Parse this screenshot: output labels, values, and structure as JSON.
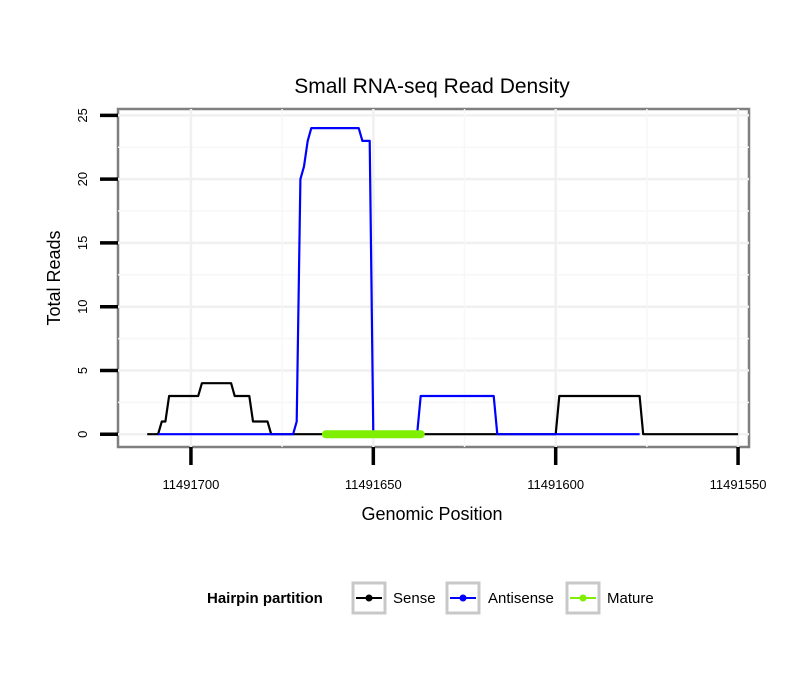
{
  "chart_data": {
    "type": "line",
    "title": "Small RNA-seq Read Density",
    "xlabel": "Genomic Position",
    "ylabel": "Total Reads",
    "x_reversed": true,
    "xlim": [
      11491720,
      11491547
    ],
    "ylim": [
      -1,
      25.5
    ],
    "x_ticks": [
      11491700,
      11491650,
      11491600,
      11491550
    ],
    "x_tick_labels": [
      "11491700",
      "11491650",
      "11491600",
      "11491550"
    ],
    "y_ticks": [
      0,
      5,
      10,
      15,
      20,
      25
    ],
    "y_tick_labels": [
      "0",
      "5",
      "10",
      "15",
      "20",
      "25"
    ],
    "grid": true,
    "legend": {
      "title": "Hairpin partition",
      "position": "bottom",
      "entries": [
        {
          "name": "Sense",
          "color": "#000000"
        },
        {
          "name": "Antisense",
          "color": "#0000ff"
        },
        {
          "name": "Mature",
          "color": "#80ee00"
        }
      ]
    },
    "series": [
      {
        "name": "Sense",
        "color": "#000000",
        "x": [
          11491712,
          11491709,
          11491708,
          11491707,
          11491706,
          11491698,
          11491697,
          11491689,
          11491688,
          11491684,
          11491683,
          11491679,
          11491678,
          11491674,
          11491673,
          11491634,
          11491633,
          11491600,
          11491599,
          11491577,
          11491576,
          11491550
        ],
        "y": [
          0,
          0,
          1,
          1,
          3,
          3,
          4,
          4,
          3,
          3,
          1,
          1,
          0,
          0,
          0,
          0,
          0,
          0,
          3,
          3,
          0,
          0
        ]
      },
      {
        "name": "Antisense",
        "color": "#0000ff",
        "x": [
          11491709,
          11491672,
          11491671,
          11491670,
          11491669,
          11491668,
          11491667,
          11491665,
          11491659,
          11491654,
          11491653,
          11491651,
          11491650,
          11491649,
          11491648,
          11491638,
          11491637,
          11491617,
          11491616,
          11491601,
          11491600,
          11491577
        ],
        "y": [
          0,
          0,
          1,
          20,
          21,
          23,
          24,
          24,
          24,
          24,
          23,
          23,
          0,
          0,
          0,
          0,
          3,
          3,
          0,
          0,
          0,
          0
        ]
      },
      {
        "name": "Mature",
        "color": "#80ee00",
        "x": [
          11491663,
          11491637
        ],
        "y": [
          0,
          0
        ]
      }
    ]
  }
}
